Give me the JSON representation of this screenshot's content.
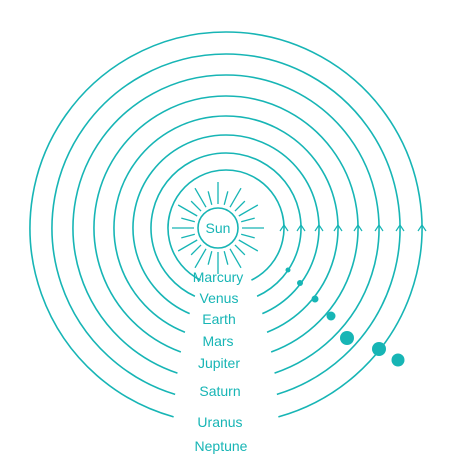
{
  "colors": {
    "accent": "#17b5b5",
    "background": "#ffffff"
  },
  "sun": {
    "label": "Sun"
  },
  "planets": [
    {
      "name": "Marcury"
    },
    {
      "name": "Venus"
    },
    {
      "name": "Earth"
    },
    {
      "name": "Mars"
    },
    {
      "name": "Jupiter"
    },
    {
      "name": "Saturn"
    },
    {
      "name": "Uranus"
    },
    {
      "name": "Neptune"
    }
  ]
}
